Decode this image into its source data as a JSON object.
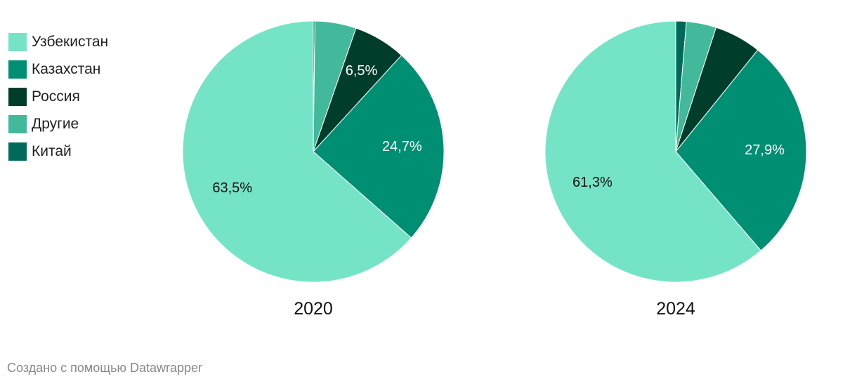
{
  "chart_data": {
    "type": "pie",
    "series_order": [
      "Узбекистан",
      "Казахстан",
      "Россия",
      "Другие",
      "Китай"
    ],
    "legend": [
      {
        "name": "Узбекистан",
        "color": "#75e4c6"
      },
      {
        "name": "Казахстан",
        "color": "#008f72"
      },
      {
        "name": "Россия",
        "color": "#003d2b"
      },
      {
        "name": "Другие",
        "color": "#41b99a"
      },
      {
        "name": "Китай",
        "color": "#00695a"
      }
    ],
    "pies": [
      {
        "title": "2020",
        "slices": [
          {
            "name": "Узбекистан",
            "value": 63.5,
            "label": "63,5%"
          },
          {
            "name": "Казахстан",
            "value": 24.7,
            "label": "24,7%"
          },
          {
            "name": "Россия",
            "value": 6.5,
            "label": "6,5%"
          },
          {
            "name": "Другие",
            "value": 5.1,
            "label": ""
          },
          {
            "name": "Китай",
            "value": 0.2,
            "label": ""
          }
        ]
      },
      {
        "title": "2024",
        "slices": [
          {
            "name": "Узбекистан",
            "value": 61.3,
            "label": "61,3%"
          },
          {
            "name": "Казахстан",
            "value": 27.9,
            "label": "27,9%"
          },
          {
            "name": "Россия",
            "value": 5.8,
            "label": ""
          },
          {
            "name": "Другие",
            "value": 3.7,
            "label": ""
          },
          {
            "name": "Китай",
            "value": 1.3,
            "label": ""
          }
        ]
      }
    ]
  },
  "footer": "Создано с помощью Datawrapper"
}
